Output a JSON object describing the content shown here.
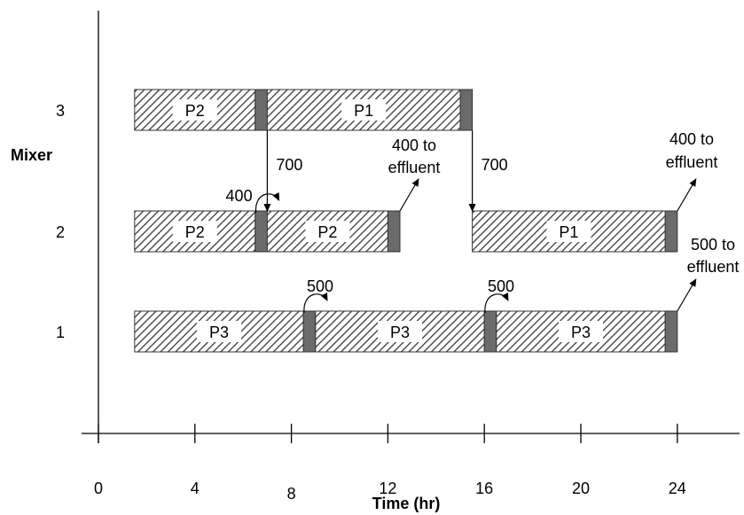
{
  "y_axis_title": "Mixer",
  "x_axis_title": "Time (hr)",
  "chart_data": {
    "type": "gantt",
    "xlabel": "Time (hr)",
    "ylabel": "Mixer",
    "xlim": [
      0,
      24
    ],
    "x_ticks": [
      0,
      4,
      8,
      12,
      16,
      20,
      24
    ],
    "mixers": [
      1,
      2,
      3
    ],
    "colors": {
      "hatch_line": "#3a3a3a",
      "bar_border": "#333333",
      "cleanup": "#6b6b6b",
      "label_bg": "#ffffff"
    },
    "batches": [
      {
        "mixer": 3,
        "product": "P2",
        "start": 1.5,
        "end": 6.5,
        "cleanup_end": 7.0
      },
      {
        "mixer": 3,
        "product": "P1",
        "start": 7.0,
        "end": 15.0,
        "cleanup_end": 15.5
      },
      {
        "mixer": 2,
        "product": "P2",
        "start": 1.5,
        "end": 6.5,
        "cleanup_end": 7.0
      },
      {
        "mixer": 2,
        "product": "P2",
        "start": 7.0,
        "end": 12.0,
        "cleanup_end": 12.5
      },
      {
        "mixer": 2,
        "product": "P1",
        "start": 15.5,
        "end": 23.5,
        "cleanup_end": 24.0
      },
      {
        "mixer": 1,
        "product": "P3",
        "start": 1.5,
        "end": 8.5,
        "cleanup_end": 9.0
      },
      {
        "mixer": 1,
        "product": "P3",
        "start": 9.0,
        "end": 16.0,
        "cleanup_end": 16.5
      },
      {
        "mixer": 1,
        "product": "P3",
        "start": 16.5,
        "end": 23.5,
        "cleanup_end": 24.0
      }
    ],
    "transfers": [
      {
        "from_mixer": 3,
        "to_mixer": 2,
        "time": 7.0,
        "amount": "700"
      },
      {
        "from_mixer": 3,
        "to_mixer": 2,
        "time": 15.5,
        "amount": "700"
      }
    ],
    "reuse": [
      {
        "mixer": 2,
        "time": 6.75,
        "amount": "400"
      },
      {
        "mixer": 1,
        "time": 8.75,
        "amount": "500"
      },
      {
        "mixer": 1,
        "time": 16.25,
        "amount": "500"
      }
    ],
    "effluent": [
      {
        "mixer": 2,
        "time": 12.5,
        "line1": "400 to",
        "line2": "effluent"
      },
      {
        "mixer": 2,
        "time": 24.0,
        "line1": "400 to",
        "line2": "effluent"
      },
      {
        "mixer": 1,
        "time": 24.0,
        "line1": "500 to",
        "line2": "effluent"
      }
    ]
  }
}
